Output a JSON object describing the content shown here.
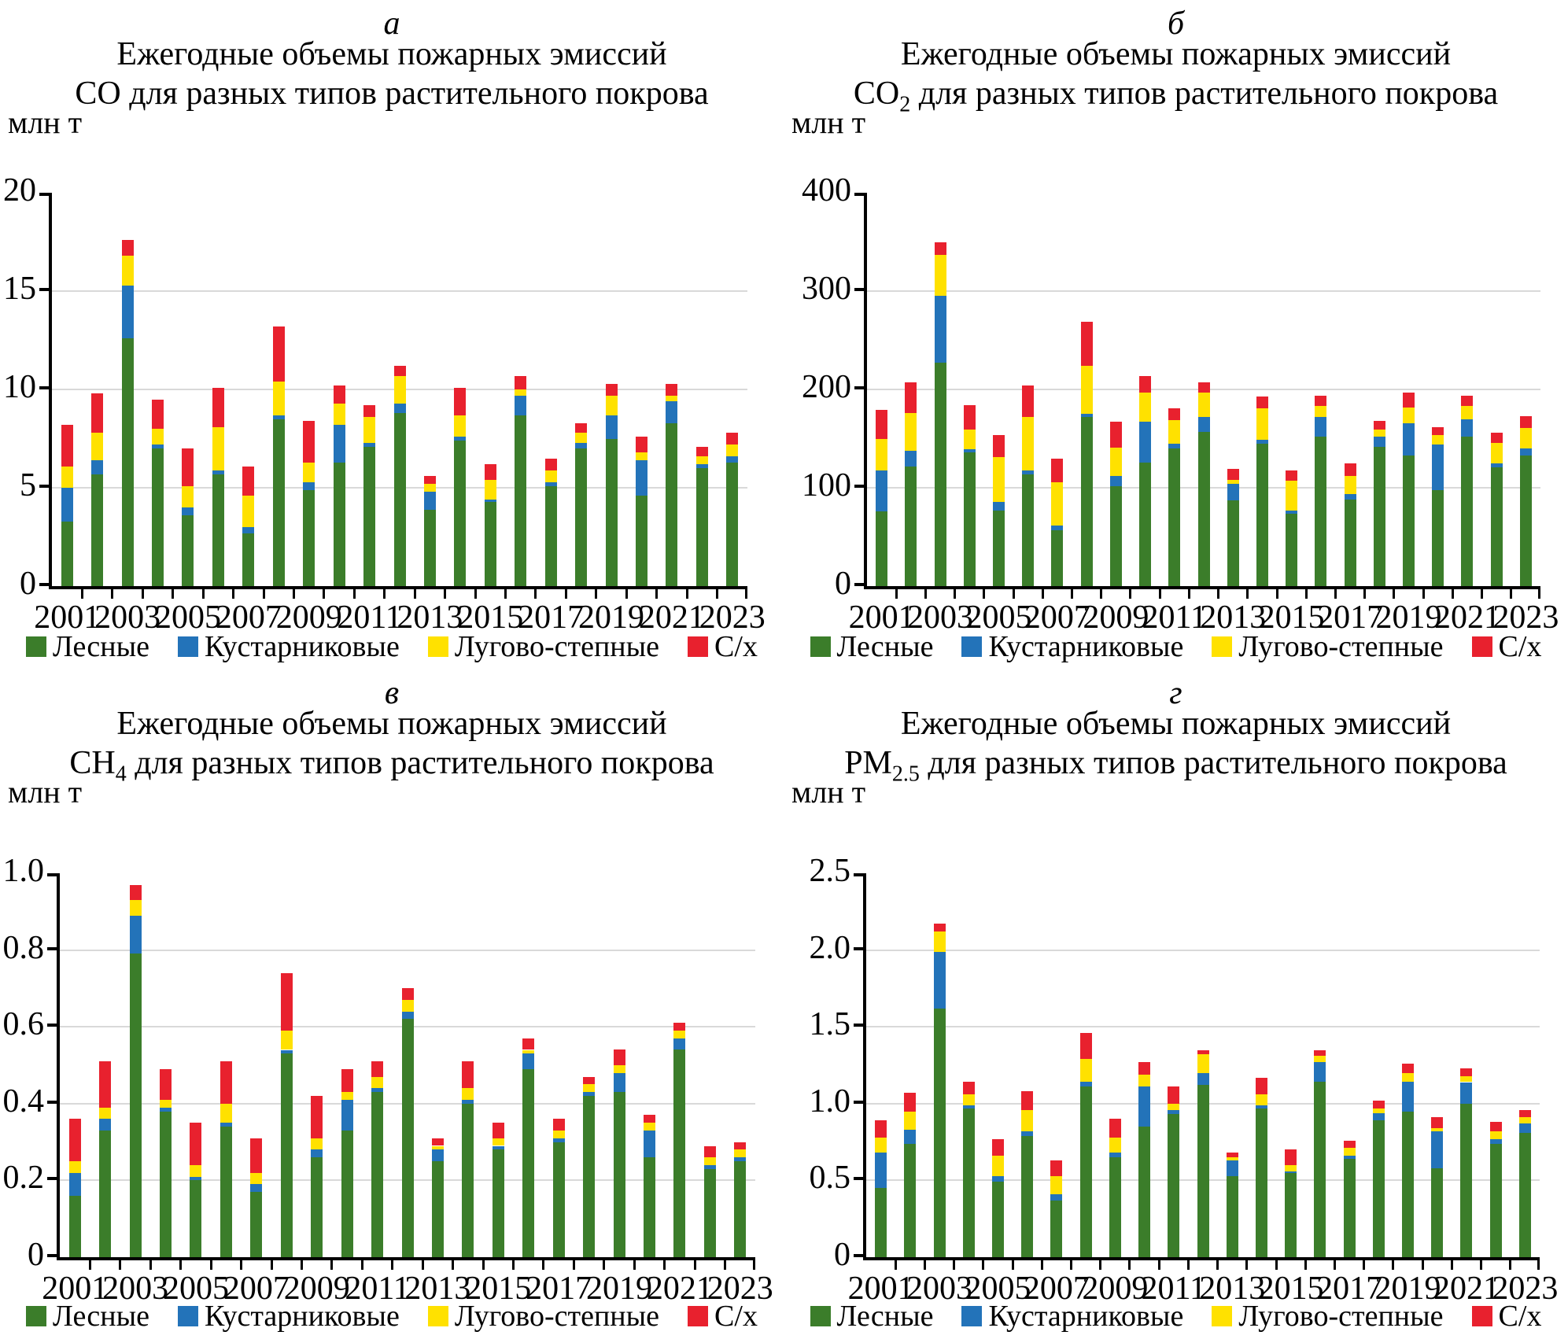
{
  "legend": {
    "items": [
      {
        "label": "Лесные",
        "color": "#3b7d2a"
      },
      {
        "label": "Кустарниковые",
        "color": "#2373b9"
      },
      {
        "label": "Лугово-степные",
        "color": "#ffe100"
      },
      {
        "label": "С/х",
        "color": "#e8212e"
      }
    ]
  },
  "colors": {
    "forest_green": "#3b7d2a",
    "shrub_blue": "#2373b9",
    "steppe_yellow": "#ffe100",
    "agri_red": "#e8212e",
    "gridline_gray": "#d9d9d9",
    "axis_black": "#000000"
  },
  "chart_data": [
    {
      "id": "a",
      "type": "bar",
      "stacked": true,
      "panel_letter": "а",
      "title_line1": "Ежегодные объемы пожарных эмиссий",
      "formula_base": "CO",
      "formula_sub": "",
      "title_rest": " для разных типов растительного покрова",
      "unit_label": "млн т",
      "years": [
        2001,
        2002,
        2003,
        2004,
        2005,
        2006,
        2007,
        2008,
        2009,
        2010,
        2011,
        2012,
        2013,
        2014,
        2015,
        2016,
        2017,
        2018,
        2019,
        2020,
        2021,
        2022,
        2023
      ],
      "x_tick_labels": [
        "2001",
        "2003",
        "2005",
        "2007",
        "2009",
        "2011",
        "2013",
        "2015",
        "2017",
        "2019",
        "2021",
        "2023"
      ],
      "ylim": [
        0,
        20
      ],
      "yticks": [
        0,
        5,
        10,
        15,
        20
      ],
      "ytick_labels": [
        "0",
        "5",
        "10",
        "15",
        "20"
      ],
      "grid": "horizontal",
      "legend_position": "bottom",
      "series": [
        {
          "name": "Лесные",
          "color": "#3b7d2a",
          "values": [
            3.3,
            5.7,
            12.6,
            7.0,
            3.6,
            5.7,
            2.7,
            8.5,
            4.9,
            6.3,
            7.1,
            8.8,
            3.9,
            7.4,
            4.3,
            8.7,
            5.1,
            7.0,
            7.5,
            4.6,
            8.3,
            6.0,
            6.3
          ]
        },
        {
          "name": "Кустарниковые",
          "color": "#2373b9",
          "values": [
            1.7,
            0.7,
            2.7,
            0.2,
            0.4,
            0.2,
            0.3,
            0.2,
            0.4,
            1.9,
            0.2,
            0.5,
            0.9,
            0.2,
            0.1,
            1.0,
            0.2,
            0.3,
            1.2,
            1.8,
            1.1,
            0.2,
            0.3
          ]
        },
        {
          "name": "Лугово-степные",
          "color": "#ffe100",
          "values": [
            1.1,
            1.4,
            1.5,
            0.8,
            1.1,
            2.2,
            1.6,
            1.7,
            1.0,
            1.1,
            1.3,
            1.4,
            0.4,
            1.1,
            1.0,
            0.3,
            0.6,
            0.5,
            1.0,
            0.4,
            0.3,
            0.4,
            0.6
          ]
        },
        {
          "name": "С/х",
          "color": "#e8212e",
          "values": [
            2.1,
            2.0,
            0.8,
            1.5,
            1.9,
            2.0,
            1.5,
            2.8,
            2.1,
            0.9,
            0.6,
            0.5,
            0.4,
            1.4,
            0.8,
            0.7,
            0.6,
            0.5,
            0.6,
            0.8,
            0.6,
            0.5,
            0.6
          ]
        }
      ]
    },
    {
      "id": "b",
      "type": "bar",
      "stacked": true,
      "panel_letter": "б",
      "title_line1": "Ежегодные объемы пожарных эмиссий",
      "formula_base": "CO",
      "formula_sub": "2",
      "title_rest": " для разных типов растительного покрова",
      "unit_label": "млн т",
      "years": [
        2001,
        2002,
        2003,
        2004,
        2005,
        2006,
        2007,
        2008,
        2009,
        2010,
        2011,
        2012,
        2013,
        2014,
        2015,
        2016,
        2017,
        2018,
        2019,
        2020,
        2021,
        2022,
        2023
      ],
      "x_tick_labels": [
        "2001",
        "2003",
        "2005",
        "2007",
        "2009",
        "2011",
        "2013",
        "2015",
        "2017",
        "2019",
        "2021",
        "2023"
      ],
      "ylim": [
        0,
        400
      ],
      "yticks": [
        0,
        100,
        200,
        300,
        400
      ],
      "ytick_labels": [
        "0",
        "100",
        "200",
        "300",
        "400"
      ],
      "grid": "horizontal",
      "legend_position": "bottom",
      "series": [
        {
          "name": "Лесные",
          "color": "#3b7d2a",
          "values": [
            76,
            122,
            227,
            136,
            77,
            114,
            57,
            172,
            102,
            126,
            140,
            157,
            87,
            145,
            74,
            152,
            88,
            142,
            133,
            98,
            152,
            121,
            133
          ]
        },
        {
          "name": "Кустарниковые",
          "color": "#2373b9",
          "values": [
            42,
            16,
            68,
            3,
            9,
            4,
            5,
            3,
            10,
            41,
            5,
            15,
            17,
            4,
            3,
            20,
            6,
            10,
            33,
            46,
            18,
            4,
            7
          ]
        },
        {
          "name": "Лугово-степные",
          "color": "#ffe100",
          "values": [
            32,
            38,
            42,
            20,
            45,
            54,
            44,
            49,
            29,
            30,
            24,
            25,
            4,
            32,
            30,
            11,
            18,
            7,
            16,
            10,
            13,
            21,
            21
          ]
        },
        {
          "name": "С/х",
          "color": "#e8212e",
          "values": [
            29,
            31,
            13,
            25,
            23,
            32,
            24,
            45,
            26,
            17,
            12,
            10,
            11,
            12,
            11,
            11,
            13,
            9,
            15,
            8,
            11,
            10,
            12
          ]
        }
      ]
    },
    {
      "id": "v",
      "type": "bar",
      "stacked": true,
      "panel_letter": "в",
      "title_line1": "Ежегодные объемы пожарных эмиссий",
      "formula_base": "CH",
      "formula_sub": "4",
      "title_rest": " для разных типов растительного покрова",
      "unit_label": "млн т",
      "years": [
        2001,
        2002,
        2003,
        2004,
        2005,
        2006,
        2007,
        2008,
        2009,
        2010,
        2011,
        2012,
        2013,
        2014,
        2015,
        2016,
        2017,
        2018,
        2019,
        2020,
        2021,
        2022,
        2023
      ],
      "x_tick_labels": [
        "2001",
        "2003",
        "2005",
        "2007",
        "2009",
        "2011",
        "2013",
        "2015",
        "2017",
        "2019",
        "2021",
        "2023"
      ],
      "ylim": [
        0,
        1.0
      ],
      "yticks": [
        0,
        0.2,
        0.4,
        0.6,
        0.8,
        1.0
      ],
      "ytick_labels": [
        "0",
        "0.2",
        "0.4",
        "0.6",
        "0.8",
        "1.0"
      ],
      "grid": "horizontal",
      "legend_position": "bottom",
      "series": [
        {
          "name": "Лесные",
          "color": "#3b7d2a",
          "values": [
            0.16,
            0.33,
            0.79,
            0.38,
            0.2,
            0.34,
            0.17,
            0.53,
            0.26,
            0.33,
            0.43,
            0.62,
            0.25,
            0.4,
            0.28,
            0.49,
            0.3,
            0.42,
            0.43,
            0.26,
            0.54,
            0.23,
            0.25
          ]
        },
        {
          "name": "Кустарниковые",
          "color": "#2373b9",
          "values": [
            0.06,
            0.03,
            0.1,
            0.01,
            0.01,
            0.01,
            0.02,
            0.01,
            0.02,
            0.08,
            0.01,
            0.02,
            0.03,
            0.01,
            0.01,
            0.04,
            0.01,
            0.01,
            0.05,
            0.07,
            0.03,
            0.01,
            0.01
          ]
        },
        {
          "name": "Лугово-степные",
          "color": "#ffe100",
          "values": [
            0.03,
            0.03,
            0.04,
            0.02,
            0.03,
            0.05,
            0.03,
            0.05,
            0.03,
            0.02,
            0.03,
            0.03,
            0.01,
            0.03,
            0.02,
            0.01,
            0.02,
            0.02,
            0.02,
            0.02,
            0.02,
            0.02,
            0.02
          ]
        },
        {
          "name": "С/х",
          "color": "#e8212e",
          "values": [
            0.11,
            0.12,
            0.04,
            0.08,
            0.11,
            0.11,
            0.09,
            0.15,
            0.11,
            0.06,
            0.04,
            0.03,
            0.02,
            0.07,
            0.04,
            0.03,
            0.03,
            0.02,
            0.04,
            0.02,
            0.02,
            0.03,
            0.02
          ]
        }
      ]
    },
    {
      "id": "g",
      "type": "bar",
      "stacked": true,
      "panel_letter": "г",
      "title_line1": "Ежегодные объемы пожарных эмиссий",
      "formula_base": "PM",
      "formula_sub": "2.5",
      "title_rest": " для разных типов растительного покрова",
      "unit_label": "млн т",
      "years": [
        2001,
        2002,
        2003,
        2004,
        2005,
        2006,
        2007,
        2008,
        2009,
        2010,
        2011,
        2012,
        2013,
        2014,
        2015,
        2016,
        2017,
        2018,
        2019,
        2020,
        2021,
        2022,
        2023
      ],
      "x_tick_labels": [
        "2001",
        "2003",
        "2005",
        "2007",
        "2009",
        "2011",
        "2013",
        "2015",
        "2017",
        "2019",
        "2021",
        "2023"
      ],
      "ylim": [
        0,
        2.5
      ],
      "yticks": [
        0,
        0.5,
        1.0,
        1.5,
        2.0,
        2.5
      ],
      "ytick_labels": [
        "0",
        "0.5",
        "1.0",
        "1.5",
        "2.0",
        "2.5"
      ],
      "grid": "horizontal",
      "legend_position": "bottom",
      "series": [
        {
          "name": "Лесные",
          "color": "#3b7d2a",
          "values": [
            0.45,
            0.74,
            1.62,
            0.97,
            0.49,
            0.79,
            0.37,
            1.11,
            0.65,
            0.85,
            0.93,
            1.12,
            0.53,
            0.97,
            0.55,
            1.14,
            0.64,
            0.89,
            0.95,
            0.58,
            1.0,
            0.74,
            0.81
          ]
        },
        {
          "name": "Кустарниковые",
          "color": "#2373b9",
          "values": [
            0.23,
            0.09,
            0.37,
            0.02,
            0.04,
            0.03,
            0.04,
            0.03,
            0.03,
            0.26,
            0.03,
            0.08,
            0.1,
            0.02,
            0.01,
            0.13,
            0.02,
            0.05,
            0.19,
            0.24,
            0.14,
            0.03,
            0.06
          ]
        },
        {
          "name": "Лугово-степные",
          "color": "#ffe100",
          "values": [
            0.1,
            0.12,
            0.13,
            0.07,
            0.13,
            0.14,
            0.12,
            0.15,
            0.1,
            0.08,
            0.04,
            0.12,
            0.02,
            0.07,
            0.04,
            0.04,
            0.05,
            0.03,
            0.06,
            0.02,
            0.04,
            0.05,
            0.04
          ]
        },
        {
          "name": "С/х",
          "color": "#e8212e",
          "values": [
            0.11,
            0.12,
            0.05,
            0.08,
            0.11,
            0.12,
            0.1,
            0.17,
            0.12,
            0.08,
            0.11,
            0.03,
            0.03,
            0.11,
            0.1,
            0.04,
            0.05,
            0.05,
            0.06,
            0.07,
            0.05,
            0.06,
            0.05
          ]
        }
      ]
    }
  ]
}
